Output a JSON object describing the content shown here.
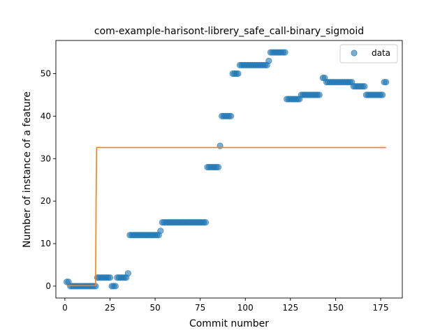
{
  "chart_data": {
    "type": "scatter",
    "title": "com-example-harisont-librery_safe_call-binary_sigmoid",
    "xlabel": "Commit number",
    "ylabel": "Number of instance of a feature",
    "xlim": [
      -5,
      187
    ],
    "ylim": [
      -2.8,
      57.8
    ],
    "xticks": [
      0,
      25,
      50,
      75,
      100,
      125,
      150,
      175
    ],
    "yticks": [
      0,
      10,
      20,
      30,
      40,
      50
    ],
    "grid": false,
    "legend": {
      "placement": "top-right",
      "entries": [
        "data"
      ]
    },
    "colors": {
      "data": "#1f77b4",
      "fit": "#ff7f0e"
    },
    "series": [
      {
        "name": "data",
        "kind": "scatter",
        "points": [
          [
            1,
            1
          ],
          [
            2,
            1
          ],
          [
            3,
            0
          ],
          [
            4,
            0
          ],
          [
            5,
            0
          ],
          [
            6,
            0
          ],
          [
            7,
            0
          ],
          [
            8,
            0
          ],
          [
            9,
            0
          ],
          [
            10,
            0
          ],
          [
            11,
            0
          ],
          [
            12,
            0
          ],
          [
            13,
            0
          ],
          [
            14,
            0
          ],
          [
            15,
            0
          ],
          [
            16,
            0
          ],
          [
            17,
            0
          ],
          [
            18,
            2
          ],
          [
            19,
            2
          ],
          [
            20,
            2
          ],
          [
            21,
            2
          ],
          [
            22,
            2
          ],
          [
            23,
            2
          ],
          [
            24,
            2
          ],
          [
            25,
            2
          ],
          [
            26,
            0
          ],
          [
            27,
            0
          ],
          [
            28,
            0
          ],
          [
            29,
            2
          ],
          [
            30,
            2
          ],
          [
            31,
            2
          ],
          [
            32,
            2
          ],
          [
            33,
            2
          ],
          [
            34,
            2
          ],
          [
            35,
            3
          ],
          [
            36,
            12
          ],
          [
            37,
            12
          ],
          [
            38,
            12
          ],
          [
            39,
            12
          ],
          [
            40,
            12
          ],
          [
            41,
            12
          ],
          [
            42,
            12
          ],
          [
            43,
            12
          ],
          [
            44,
            12
          ],
          [
            45,
            12
          ],
          [
            46,
            12
          ],
          [
            47,
            12
          ],
          [
            48,
            12
          ],
          [
            49,
            12
          ],
          [
            50,
            12
          ],
          [
            51,
            12
          ],
          [
            52,
            12
          ],
          [
            53,
            13
          ],
          [
            54,
            15
          ],
          [
            55,
            15
          ],
          [
            56,
            15
          ],
          [
            57,
            15
          ],
          [
            58,
            15
          ],
          [
            59,
            15
          ],
          [
            60,
            15
          ],
          [
            61,
            15
          ],
          [
            62,
            15
          ],
          [
            63,
            15
          ],
          [
            64,
            15
          ],
          [
            65,
            15
          ],
          [
            66,
            15
          ],
          [
            67,
            15
          ],
          [
            68,
            15
          ],
          [
            69,
            15
          ],
          [
            70,
            15
          ],
          [
            71,
            15
          ],
          [
            72,
            15
          ],
          [
            73,
            15
          ],
          [
            74,
            15
          ],
          [
            75,
            15
          ],
          [
            76,
            15
          ],
          [
            77,
            15
          ],
          [
            78,
            15
          ],
          [
            79,
            28
          ],
          [
            80,
            28
          ],
          [
            81,
            28
          ],
          [
            82,
            28
          ],
          [
            83,
            28
          ],
          [
            84,
            28
          ],
          [
            85,
            28
          ],
          [
            86,
            33
          ],
          [
            87,
            40
          ],
          [
            88,
            40
          ],
          [
            89,
            40
          ],
          [
            90,
            40
          ],
          [
            91,
            40
          ],
          [
            92,
            40
          ],
          [
            93,
            50
          ],
          [
            94,
            50
          ],
          [
            95,
            50
          ],
          [
            96,
            50
          ],
          [
            97,
            52
          ],
          [
            98,
            52
          ],
          [
            99,
            52
          ],
          [
            100,
            52
          ],
          [
            101,
            52
          ],
          [
            102,
            52
          ],
          [
            103,
            52
          ],
          [
            104,
            52
          ],
          [
            105,
            52
          ],
          [
            106,
            52
          ],
          [
            107,
            52
          ],
          [
            108,
            52
          ],
          [
            109,
            52
          ],
          [
            110,
            52
          ],
          [
            111,
            52
          ],
          [
            112,
            52
          ],
          [
            113,
            53
          ],
          [
            114,
            55
          ],
          [
            115,
            55
          ],
          [
            116,
            55
          ],
          [
            117,
            55
          ],
          [
            118,
            55
          ],
          [
            119,
            55
          ],
          [
            120,
            55
          ],
          [
            121,
            55
          ],
          [
            122,
            55
          ],
          [
            123,
            44
          ],
          [
            124,
            44
          ],
          [
            125,
            44
          ],
          [
            126,
            44
          ],
          [
            127,
            44
          ],
          [
            128,
            44
          ],
          [
            129,
            44
          ],
          [
            130,
            44
          ],
          [
            131,
            45
          ],
          [
            132,
            45
          ],
          [
            133,
            45
          ],
          [
            134,
            45
          ],
          [
            135,
            45
          ],
          [
            136,
            45
          ],
          [
            137,
            45
          ],
          [
            138,
            45
          ],
          [
            139,
            45
          ],
          [
            140,
            45
          ],
          [
            141,
            45
          ],
          [
            143,
            49
          ],
          [
            144,
            49
          ],
          [
            145,
            48
          ],
          [
            146,
            48
          ],
          [
            147,
            48
          ],
          [
            148,
            48
          ],
          [
            149,
            48
          ],
          [
            150,
            48
          ],
          [
            151,
            48
          ],
          [
            152,
            48
          ],
          [
            153,
            48
          ],
          [
            154,
            48
          ],
          [
            155,
            48
          ],
          [
            156,
            48
          ],
          [
            157,
            48
          ],
          [
            158,
            48
          ],
          [
            159,
            48
          ],
          [
            160,
            47
          ],
          [
            161,
            47
          ],
          [
            162,
            47
          ],
          [
            163,
            47
          ],
          [
            164,
            47
          ],
          [
            165,
            47
          ],
          [
            166,
            47
          ],
          [
            167,
            45
          ],
          [
            168,
            45
          ],
          [
            169,
            45
          ],
          [
            170,
            45
          ],
          [
            171,
            45
          ],
          [
            172,
            45
          ],
          [
            173,
            45
          ],
          [
            174,
            45
          ],
          [
            175,
            45
          ],
          [
            176,
            45
          ],
          [
            177,
            48
          ],
          [
            178,
            48
          ]
        ]
      },
      {
        "kind": "line",
        "points": [
          [
            1,
            0.1
          ],
          [
            17,
            0.1
          ],
          [
            17.3,
            20
          ],
          [
            17.6,
            32.6
          ],
          [
            178,
            32.6
          ]
        ]
      }
    ]
  }
}
